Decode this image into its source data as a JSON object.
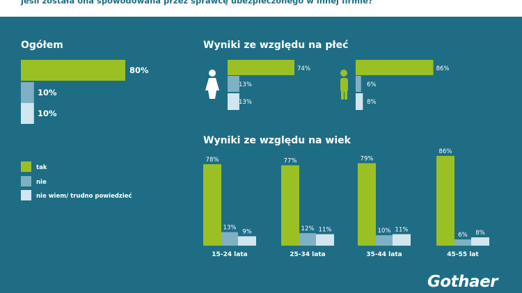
{
  "header": {
    "question": "jeśli została ona spowodowana przez sprawcę ubezpieczonego w innej firmie?"
  },
  "colors": {
    "background": "#1e6d84",
    "tak": "#9bc023",
    "nie": "#7fb0c4",
    "nie_wiem": "#d2e6ef"
  },
  "brand": {
    "logo_text": "Gothaer"
  },
  "chart_data": [
    {
      "type": "bar",
      "orientation": "horizontal",
      "title": "Ogółem",
      "categories": [
        "tak",
        "nie",
        "nie wiem/ trudno powiedzieć"
      ],
      "values": [
        80,
        10,
        10
      ],
      "value_labels": [
        "80%",
        "10%",
        "10%"
      ],
      "unit": "%",
      "legend": {
        "placement": "left",
        "entries": [
          "tak",
          "nie",
          "nie wiem/ trudno powiedzieć"
        ]
      }
    },
    {
      "type": "bar",
      "orientation": "horizontal",
      "title": "Wyniki ze względu na płeć",
      "groups": [
        "female-icon",
        "male-icon"
      ],
      "series": [
        {
          "name": "tak",
          "values": [
            74,
            86
          ],
          "labels": [
            "74%",
            "86%"
          ]
        },
        {
          "name": "nie",
          "values": [
            13,
            6
          ],
          "labels": [
            "13%",
            "6%"
          ]
        },
        {
          "name": "nie wiem/ trudno powiedzieć",
          "values": [
            13,
            8
          ],
          "labels": [
            "13%",
            "8%"
          ]
        }
      ],
      "unit": "%"
    },
    {
      "type": "bar",
      "orientation": "vertical",
      "title": "Wyniki ze względu na wiek",
      "categories": [
        "15-24 lata",
        "25-34 lata",
        "35-44 lata",
        "45-55 lat"
      ],
      "series": [
        {
          "name": "tak",
          "values": [
            78,
            77,
            79,
            86
          ],
          "labels": [
            "78%",
            "77%",
            "79%",
            "86%"
          ]
        },
        {
          "name": "nie",
          "values": [
            13,
            12,
            10,
            6
          ],
          "labels": [
            "13%",
            "12%",
            "10%",
            "6%"
          ]
        },
        {
          "name": "nie wiem/ trudno powiedzieć",
          "values": [
            9,
            11,
            11,
            8
          ],
          "labels": [
            "9%",
            "11%",
            "11%",
            "8%"
          ]
        }
      ],
      "unit": "%"
    }
  ]
}
